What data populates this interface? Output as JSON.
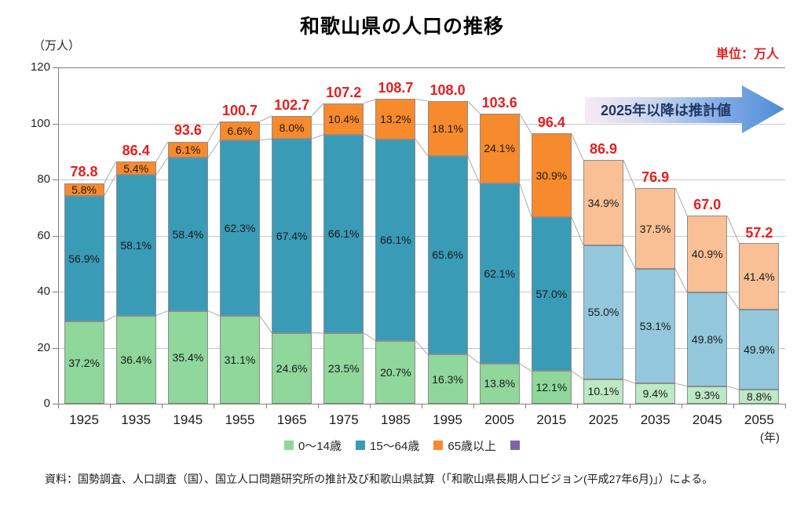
{
  "title": "和歌山県の人口の推移",
  "unit_label": "単位：万人",
  "y_axis_unit": "（万人）",
  "x_axis_unit": "(年)",
  "annotation": "2025年以降は推計値",
  "source": "資料：国勢調査、人口調査（国）、国立人口問題研究所の推計及び和歌山県試算（「和歌山県長期人口ビジョン(平成27年6月)」）による。",
  "colors": {
    "accent_red": "#E61E1E",
    "gridline": "#C7C7C7",
    "axis": "#7F7F7F",
    "connector_line": "#ABABAB",
    "bar_border": "#8C8C8C",
    "annotation_navy": "#1F3864",
    "arrow_gradient_start": "#F9EAF5",
    "arrow_gradient_end": "#4E8CD8"
  },
  "legend": [
    {
      "label": "0〜14歳",
      "color": "#8FD79B"
    },
    {
      "label": "15〜64歳",
      "color": "#3A9BB7"
    },
    {
      "label": "65歳以上",
      "color": "#F78A2D"
    },
    {
      "label": "",
      "color": "#7E62A8"
    }
  ],
  "chart_data": {
    "type": "bar",
    "stacked": true,
    "title": "和歌山県の人口の推移",
    "ylabel": "（万人）",
    "xlabel": "(年)",
    "ylim": [
      0,
      120
    ],
    "yticks": [
      0,
      20,
      40,
      60,
      80,
      100,
      120
    ],
    "grid": true,
    "legend_position": "bottom",
    "categories": [
      "1925",
      "1935",
      "1945",
      "1955",
      "1965",
      "1975",
      "1985",
      "1995",
      "2005",
      "2015",
      "2025",
      "2035",
      "2045",
      "2055"
    ],
    "totals": [
      78.8,
      86.4,
      93.6,
      100.7,
      102.7,
      107.2,
      108.7,
      108.0,
      103.6,
      96.4,
      86.9,
      76.9,
      67.0,
      57.2
    ],
    "projected_from_index": 10,
    "projected_note": "2025年以降は推計値",
    "series": [
      {
        "name": "0〜14歳",
        "unit": "percent_of_total",
        "color": "#8FD79B",
        "color_projected": "#BDE8C4",
        "percent": [
          37.2,
          36.4,
          35.4,
          31.1,
          24.6,
          23.5,
          20.7,
          16.3,
          13.8,
          12.1,
          10.1,
          9.4,
          9.3,
          8.8
        ]
      },
      {
        "name": "15〜64歳",
        "unit": "percent_of_total",
        "color": "#3A9BB7",
        "color_projected": "#93C7DC",
        "percent": [
          56.9,
          58.1,
          58.4,
          62.3,
          67.4,
          66.1,
          66.1,
          65.6,
          62.1,
          57.0,
          55.0,
          53.1,
          49.8,
          49.9
        ]
      },
      {
        "name": "65歳以上",
        "unit": "percent_of_total",
        "color": "#F78A2D",
        "color_projected": "#F9C095",
        "percent": [
          5.8,
          5.4,
          6.1,
          6.6,
          8.0,
          10.4,
          13.2,
          18.1,
          24.1,
          30.9,
          34.9,
          37.5,
          40.9,
          41.4
        ]
      }
    ]
  }
}
